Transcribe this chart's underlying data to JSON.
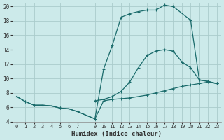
{
  "xlabel": "Humidex (Indice chaleur)",
  "bg_color": "#cceaea",
  "grid_color": "#aacccc",
  "line_color": "#1a6b6b",
  "xlim": [
    -0.5,
    23.5
  ],
  "ylim": [
    4,
    20.5
  ],
  "xticks": [
    0,
    1,
    2,
    3,
    4,
    5,
    6,
    7,
    9,
    10,
    11,
    12,
    13,
    14,
    15,
    16,
    17,
    18,
    19,
    20,
    21,
    22,
    23
  ],
  "yticks": [
    4,
    6,
    8,
    10,
    12,
    14,
    16,
    18,
    20
  ],
  "line1_x": [
    0,
    1,
    2,
    3,
    4,
    5,
    6,
    7,
    9,
    10,
    11,
    12,
    13,
    14,
    15,
    16,
    17,
    18,
    20,
    21,
    22,
    23
  ],
  "line1_y": [
    7.5,
    6.8,
    6.3,
    6.3,
    6.2,
    5.9,
    5.8,
    5.4,
    4.4,
    11.3,
    14.6,
    18.5,
    19.0,
    19.3,
    19.5,
    19.5,
    20.2,
    20.0,
    18.1,
    9.8,
    9.6,
    9.3
  ],
  "line2_x": [
    0,
    1,
    2,
    3,
    4,
    5,
    6,
    7,
    9,
    10,
    11,
    12,
    13,
    14,
    15,
    16,
    17,
    18,
    19,
    20,
    21,
    22,
    23
  ],
  "line2_y": [
    7.5,
    6.8,
    6.3,
    6.3,
    6.2,
    5.9,
    5.8,
    5.4,
    4.4,
    6.9,
    7.1,
    7.2,
    7.3,
    7.5,
    7.7,
    8.0,
    8.3,
    8.6,
    8.9,
    9.1,
    9.3,
    9.5,
    9.3
  ],
  "line3_x": [
    9,
    10,
    11,
    12,
    13,
    14,
    15,
    16,
    17,
    18,
    19,
    20,
    21,
    22,
    23
  ],
  "line3_y": [
    6.9,
    7.1,
    7.5,
    8.2,
    9.5,
    11.5,
    13.2,
    13.8,
    14.0,
    13.8,
    12.3,
    11.5,
    9.8,
    9.6,
    9.3
  ]
}
